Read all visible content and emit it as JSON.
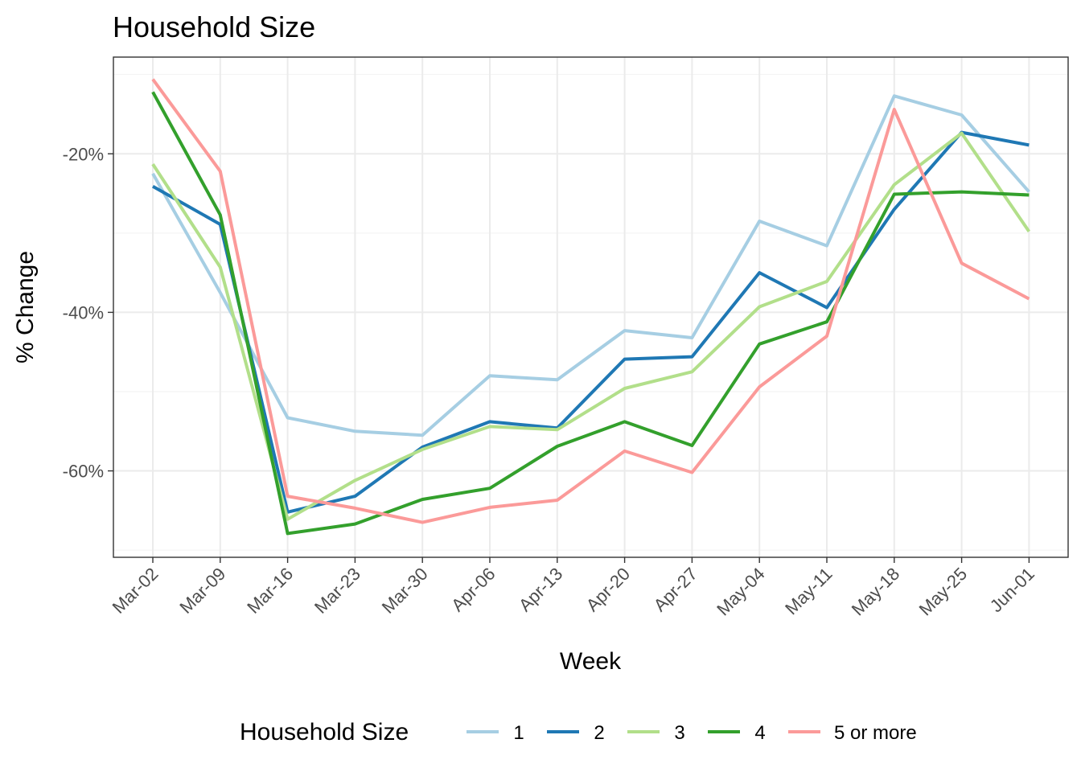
{
  "chart_data": {
    "type": "line",
    "title": "Household Size",
    "xlabel": "Week",
    "ylabel": "% Change",
    "categories": [
      "Mar-02",
      "Mar-09",
      "Mar-16",
      "Mar-23",
      "Mar-30",
      "Apr-06",
      "Apr-13",
      "Apr-20",
      "Apr-27",
      "May-04",
      "May-11",
      "May-18",
      "May-25",
      "Jun-01"
    ],
    "y_ticks": [
      -60,
      -40,
      -20
    ],
    "y_tick_labels": [
      "-60%",
      "-40%",
      "-20%"
    ],
    "ylim": [
      -70.9,
      -7.8
    ],
    "grid": true,
    "legend": {
      "title": "Household Size",
      "position": "bottom"
    },
    "series": [
      {
        "name": "1",
        "color": "#a6cee3",
        "values": [
          -22.5,
          -37.5,
          -53.3,
          -55.0,
          -55.5,
          -48.0,
          -48.5,
          -42.3,
          -43.2,
          -28.5,
          -31.6,
          -12.7,
          -15.1,
          -24.8
        ]
      },
      {
        "name": "2",
        "color": "#1f78b4",
        "values": [
          -24.1,
          -28.9,
          -65.2,
          -63.2,
          -57.0,
          -53.8,
          -54.6,
          -45.9,
          -45.6,
          -35.0,
          -39.4,
          -27.0,
          -17.3,
          -18.9
        ]
      },
      {
        "name": "3",
        "color": "#b2df8a",
        "values": [
          -21.3,
          -34.3,
          -66.1,
          -61.2,
          -57.3,
          -54.4,
          -54.8,
          -49.6,
          -47.5,
          -39.3,
          -36.1,
          -23.9,
          -17.4,
          -29.8
        ]
      },
      {
        "name": "4",
        "color": "#33a02c",
        "values": [
          -12.2,
          -27.7,
          -67.9,
          -66.7,
          -63.6,
          -62.2,
          -56.9,
          -53.8,
          -56.8,
          -44.0,
          -41.2,
          -25.1,
          -24.8,
          -25.2
        ]
      },
      {
        "name": "5 or more",
        "color": "#fb9a99",
        "values": [
          -10.6,
          -22.2,
          -63.2,
          -64.7,
          -66.5,
          -64.6,
          -63.7,
          -57.5,
          -60.2,
          -49.4,
          -43.0,
          -14.4,
          -33.8,
          -38.3
        ]
      }
    ]
  }
}
